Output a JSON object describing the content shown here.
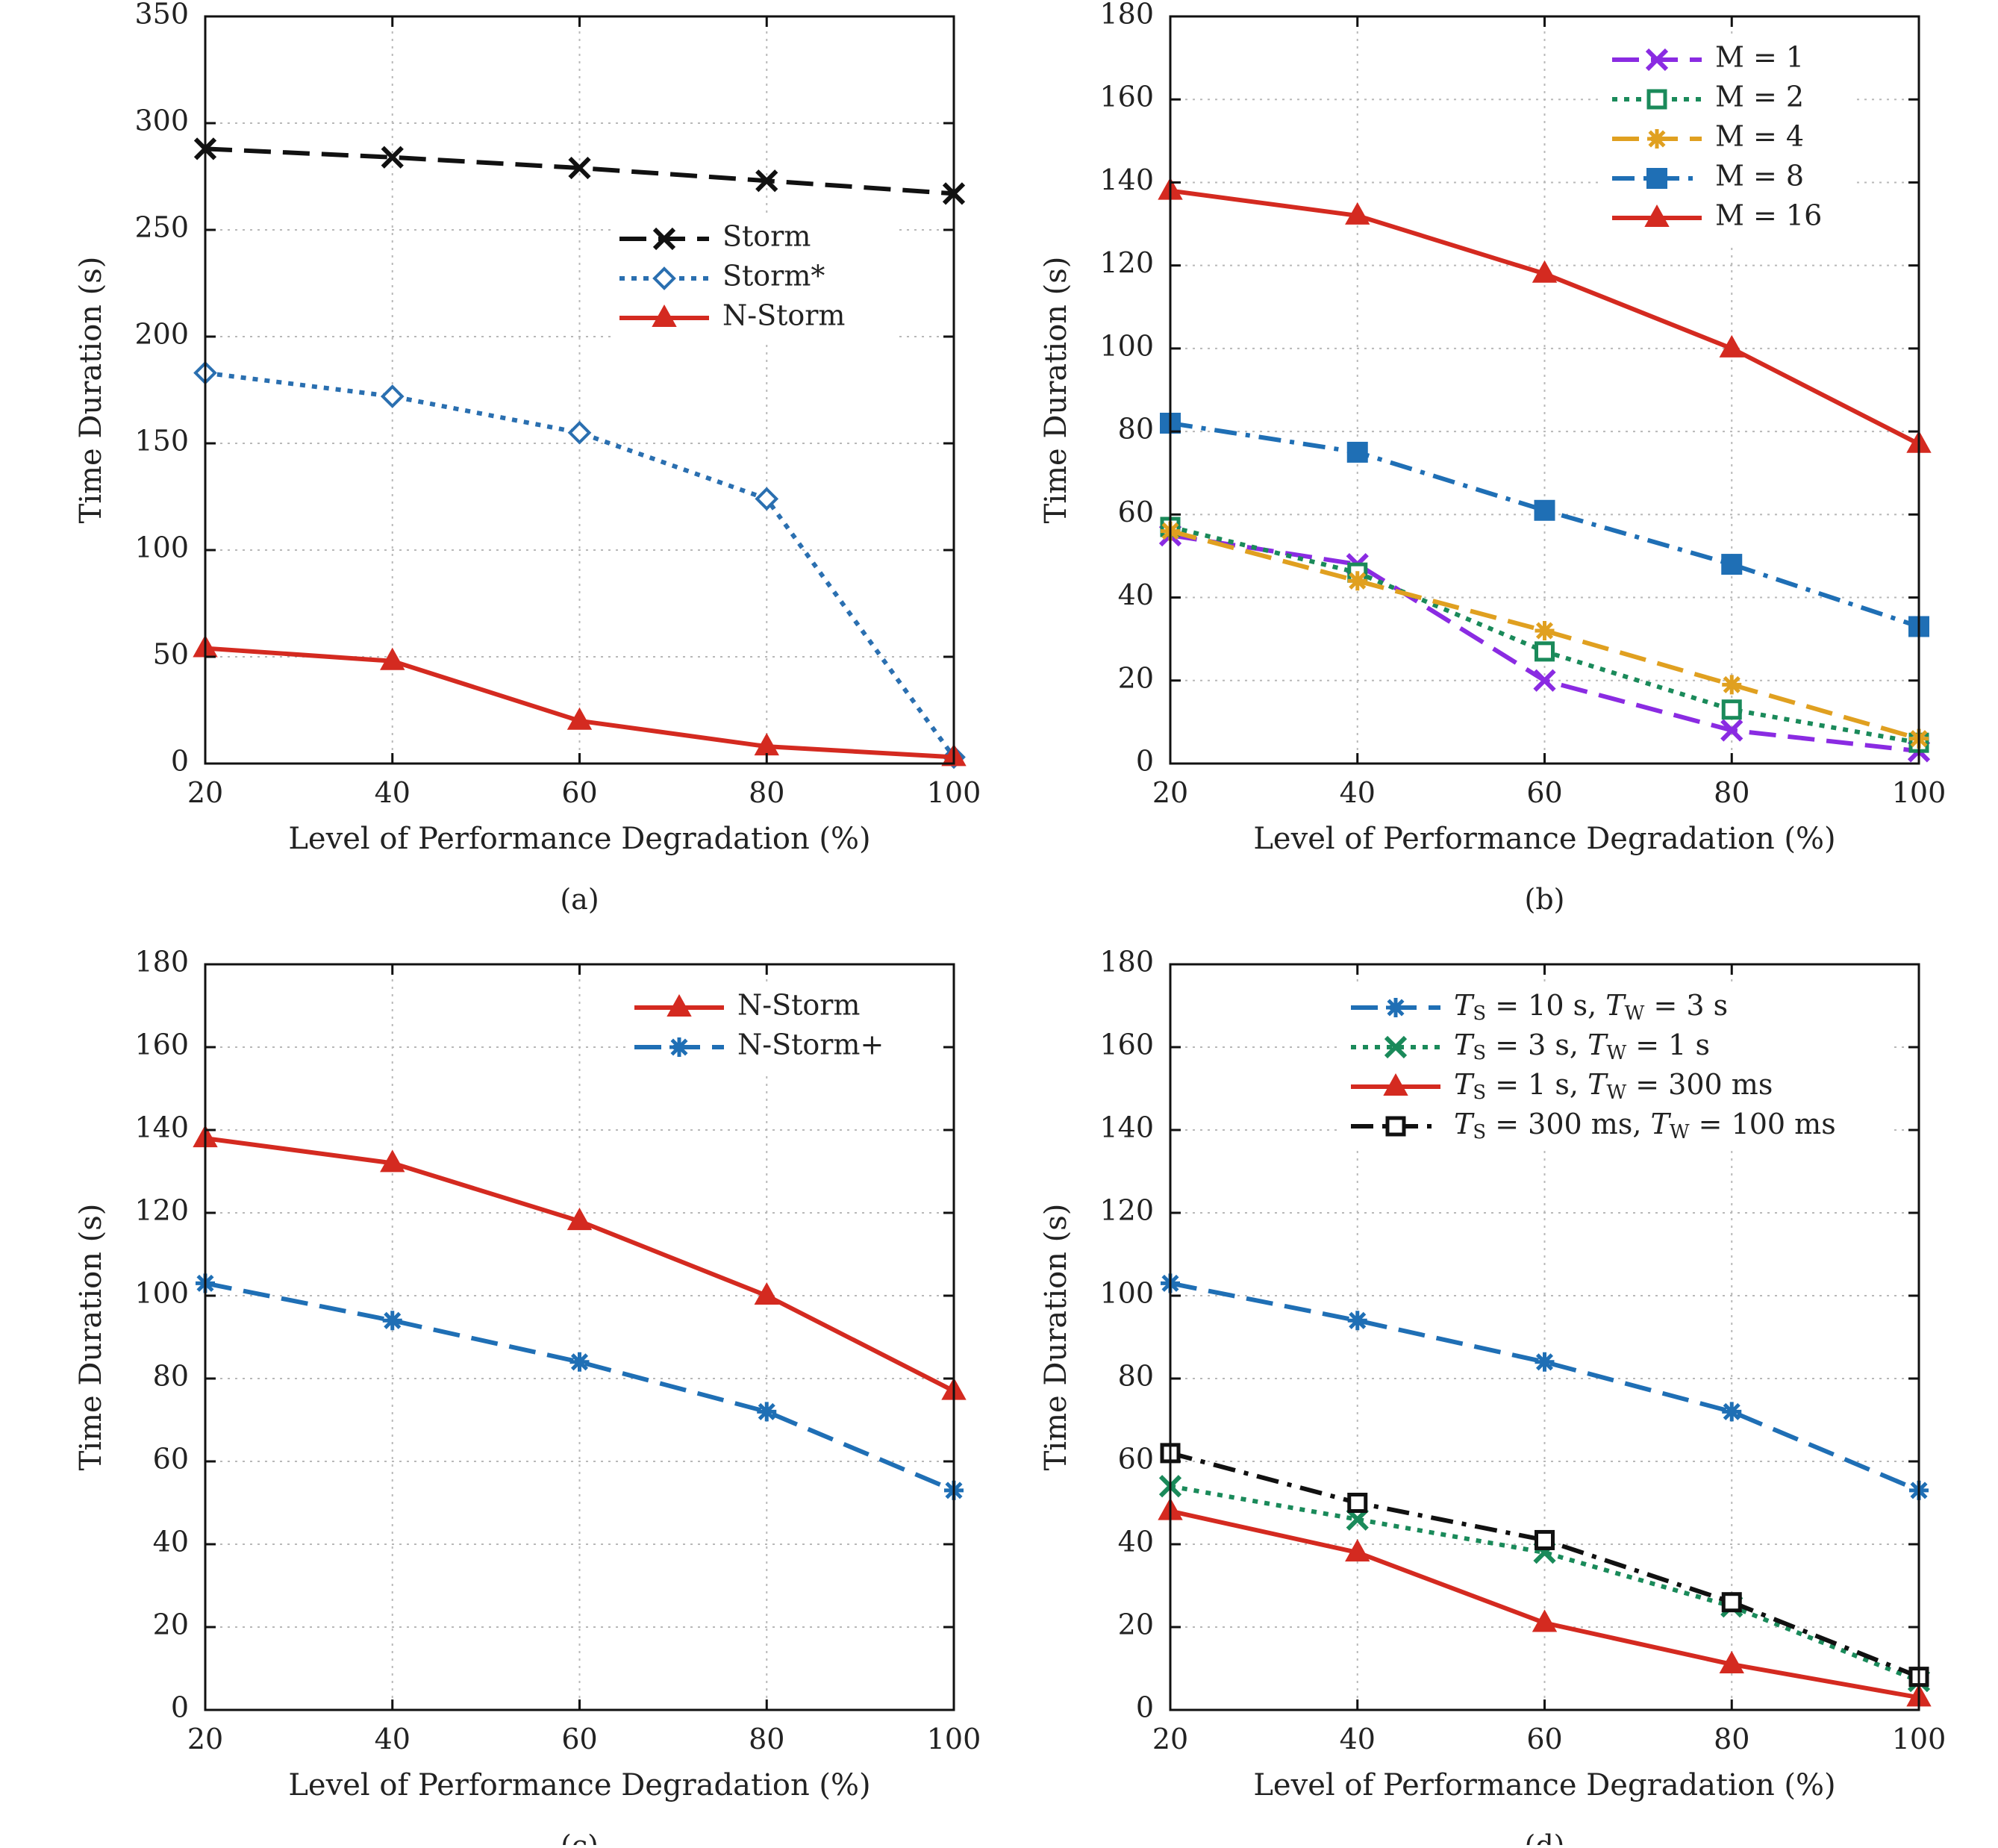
{
  "chart_data": [
    {
      "id": "a",
      "type": "line",
      "caption": "(a)",
      "xlabel": "Level of Performance Degradation (%)",
      "ylabel": "Time Duration (s)",
      "xlim": [
        20,
        100
      ],
      "ylim": [
        0,
        350
      ],
      "xticks": [
        20,
        40,
        60,
        80,
        100
      ],
      "yticks": [
        0,
        50,
        100,
        150,
        200,
        250,
        300,
        350
      ],
      "grid": true,
      "legend_position": "center-right",
      "x": [
        20,
        40,
        60,
        80,
        100
      ],
      "series": [
        {
          "name": "Storm",
          "color": "#111111",
          "dash": "long-dash",
          "marker": "x",
          "values": [
            288,
            284,
            279,
            273,
            267
          ]
        },
        {
          "name": "Storm*",
          "color": "#2a6fb0",
          "dash": "dotted",
          "marker": "diamond",
          "values": [
            183,
            172,
            155,
            124,
            3
          ]
        },
        {
          "name": "N-Storm",
          "color": "#d42a20",
          "dash": "solid",
          "marker": "triangle",
          "values": [
            54,
            48,
            20,
            8,
            3
          ]
        }
      ]
    },
    {
      "id": "b",
      "type": "line",
      "caption": "(b)",
      "xlabel": "Level of Performance Degradation (%)",
      "ylabel": "Time Duration (s)",
      "xlim": [
        20,
        100
      ],
      "ylim": [
        0,
        180
      ],
      "xticks": [
        20,
        40,
        60,
        80,
        100
      ],
      "yticks": [
        0,
        20,
        40,
        60,
        80,
        100,
        120,
        140,
        160,
        180
      ],
      "grid": true,
      "legend_position": "top-right",
      "x": [
        20,
        40,
        60,
        80,
        100
      ],
      "series": [
        {
          "name": "M = 1",
          "color": "#8a2be2",
          "dash": "long-dash",
          "marker": "x",
          "values": [
            55,
            48,
            20,
            8,
            3
          ]
        },
        {
          "name": "M = 2",
          "color": "#1a8a5a",
          "dash": "dotted",
          "marker": "square-open",
          "values": [
            57,
            46,
            27,
            13,
            5
          ]
        },
        {
          "name": "M = 4",
          "color": "#e0a020",
          "dash": "long-dash",
          "marker": "asterisk",
          "values": [
            56,
            44,
            32,
            19,
            6
          ]
        },
        {
          "name": "M = 8",
          "color": "#1f6fb5",
          "dash": "dash-dot",
          "marker": "square",
          "values": [
            82,
            75,
            61,
            48,
            33
          ]
        },
        {
          "name": "M = 16",
          "color": "#d42a20",
          "dash": "solid",
          "marker": "triangle",
          "values": [
            138,
            132,
            118,
            100,
            77
          ]
        }
      ]
    },
    {
      "id": "c",
      "type": "line",
      "caption": "(c)",
      "xlabel": "Level of Performance Degradation (%)",
      "ylabel": "Time Duration (s)",
      "xlim": [
        20,
        100
      ],
      "ylim": [
        0,
        180
      ],
      "xticks": [
        20,
        40,
        60,
        80,
        100
      ],
      "yticks": [
        0,
        20,
        40,
        60,
        80,
        100,
        120,
        140,
        160,
        180
      ],
      "grid": true,
      "legend_position": "top-right",
      "x": [
        20,
        40,
        60,
        80,
        100
      ],
      "series": [
        {
          "name": "N-Storm",
          "color": "#d42a20",
          "dash": "solid",
          "marker": "triangle",
          "values": [
            138,
            132,
            118,
            100,
            77
          ]
        },
        {
          "name": "N-Storm+",
          "color": "#1f6fb5",
          "dash": "long-dash",
          "marker": "asterisk",
          "values": [
            103,
            94,
            84,
            72,
            53
          ]
        }
      ]
    },
    {
      "id": "d",
      "type": "line",
      "caption": "(d)",
      "xlabel": "Level of Performance Degradation (%)",
      "ylabel": "Time Duration (s)",
      "xlim": [
        20,
        100
      ],
      "ylim": [
        0,
        180
      ],
      "xticks": [
        20,
        40,
        60,
        80,
        100
      ],
      "yticks": [
        0,
        20,
        40,
        60,
        80,
        100,
        120,
        140,
        160,
        180
      ],
      "grid": true,
      "legend_position": "top-right",
      "x": [
        20,
        40,
        60,
        80,
        100
      ],
      "series": [
        {
          "name": "T_S = 10 s, T_W = 3 s",
          "legend": [
            [
              "T",
              "S",
              " = 10 s, "
            ],
            [
              "T",
              "W",
              " = 3 s"
            ]
          ],
          "color": "#1f6fb5",
          "dash": "long-dash",
          "marker": "asterisk",
          "values": [
            103,
            94,
            84,
            72,
            53
          ]
        },
        {
          "name": "T_S = 3 s, T_W = 1 s",
          "legend": [
            [
              "T",
              "S",
              " = 3 s, "
            ],
            [
              "T",
              "W",
              " = 1 s"
            ]
          ],
          "color": "#1a8a5a",
          "dash": "dotted",
          "marker": "x",
          "values": [
            54,
            46,
            38,
            25,
            7
          ]
        },
        {
          "name": "T_S = 1 s, T_W = 300 ms",
          "legend": [
            [
              "T",
              "S",
              " = 1 s, "
            ],
            [
              "T",
              "W",
              " = 300 ms"
            ]
          ],
          "color": "#d42a20",
          "dash": "solid",
          "marker": "triangle",
          "values": [
            48,
            38,
            21,
            11,
            3
          ]
        },
        {
          "name": "T_S = 300 ms, T_W = 100 ms",
          "legend": [
            [
              "T",
              "S",
              " = 300 ms, "
            ],
            [
              "T",
              "W",
              " = 100 ms"
            ]
          ],
          "color": "#111111",
          "dash": "dash-dot",
          "marker": "square-open",
          "values": [
            62,
            50,
            41,
            26,
            8
          ]
        }
      ]
    }
  ]
}
